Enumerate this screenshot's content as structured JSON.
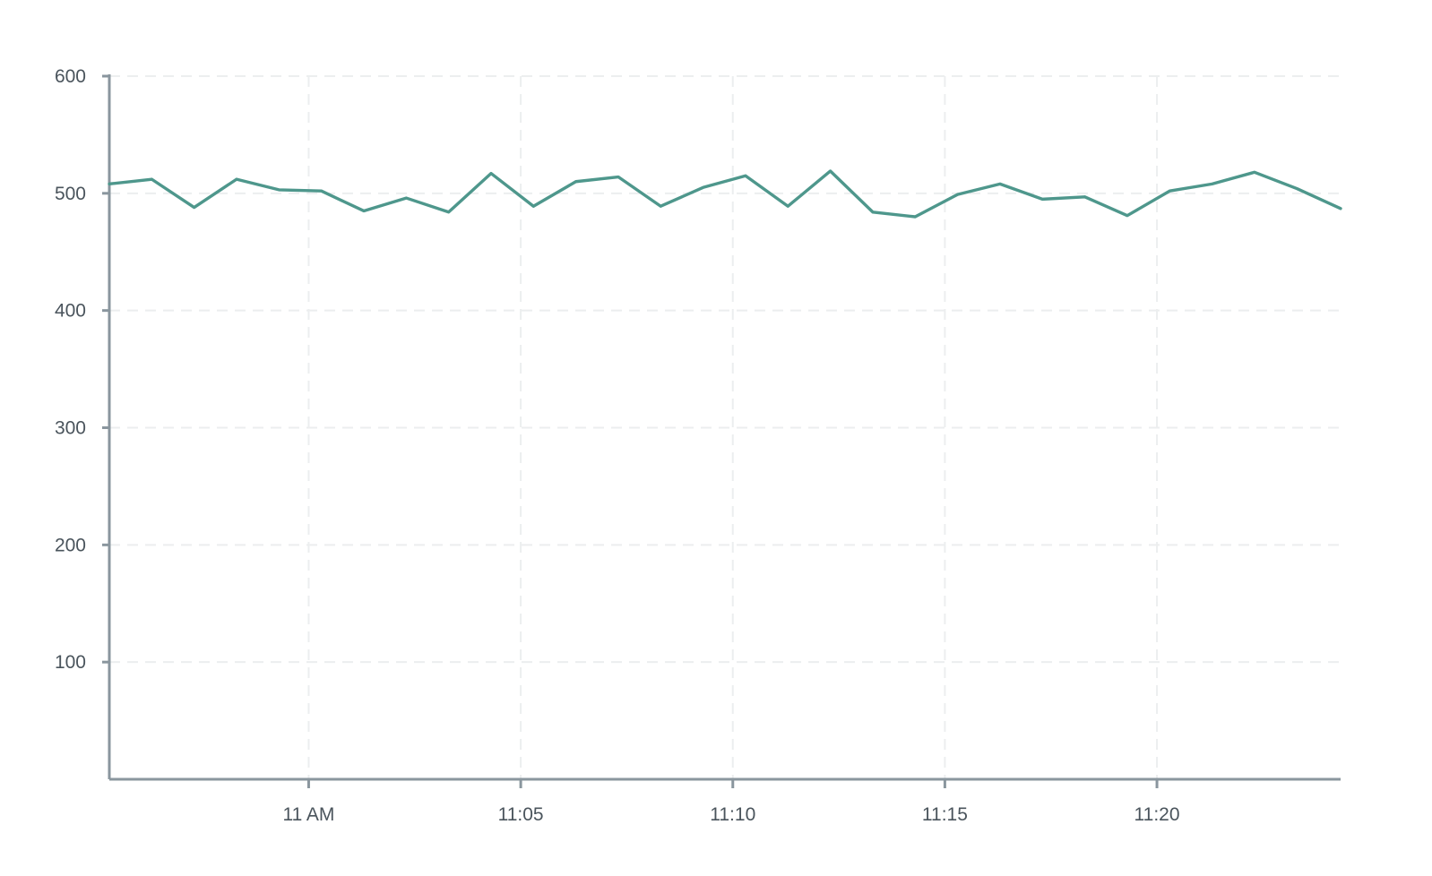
{
  "chart_data": {
    "type": "line",
    "x_ticks": [
      "11 AM",
      "11:05",
      "11:10",
      "11:15",
      "11:20"
    ],
    "x_tick_minutes": [
      0,
      5,
      10,
      15,
      20
    ],
    "xlim_minutes": [
      -4.7,
      24.33
    ],
    "ylim": [
      0,
      600
    ],
    "y_ticks": [
      100,
      200,
      300,
      400,
      500,
      600
    ],
    "grid": true,
    "legend": "none",
    "colors": {
      "series": "#4e978c",
      "axis": "#8a969e",
      "grid": "#eceeef",
      "text": "#4a545c"
    },
    "series": [
      {
        "x_minutes": [
          -4.7,
          -3.7,
          -2.7,
          -1.7,
          -0.7,
          0.3,
          1.3,
          2.3,
          3.3,
          4.3,
          5.3,
          6.3,
          7.3,
          8.3,
          9.3,
          10.3,
          11.3,
          12.3,
          13.3,
          14.3,
          15.3,
          16.3,
          17.3,
          18.3,
          19.3,
          20.3,
          21.3,
          22.3,
          23.3,
          24.33
        ],
        "values": [
          508,
          512,
          488,
          512,
          503,
          502,
          485,
          496,
          484,
          517,
          489,
          510,
          514,
          489,
          505,
          515,
          489,
          519,
          484,
          480,
          499,
          508,
          495,
          497,
          481,
          502,
          508,
          518,
          504,
          487
        ]
      }
    ]
  }
}
